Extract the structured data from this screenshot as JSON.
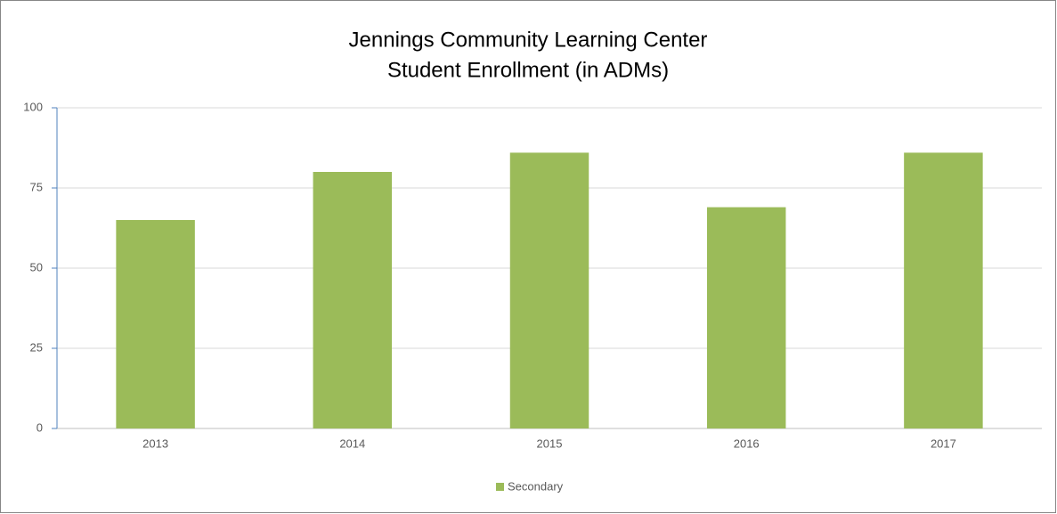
{
  "chart_data": {
    "type": "bar",
    "title": "Jennings Community Learning Center",
    "subtitle": "Student Enrollment (in ADMs)",
    "categories": [
      "2013",
      "2014",
      "2015",
      "2016",
      "2017"
    ],
    "series": [
      {
        "name": "Secondary",
        "color": "#9bbb59",
        "values": [
          65,
          80,
          86,
          69,
          86
        ]
      }
    ],
    "ylim": [
      0,
      100
    ],
    "yticks": [
      0,
      25,
      50,
      75,
      100
    ],
    "grid": true,
    "legend": "bottom"
  }
}
